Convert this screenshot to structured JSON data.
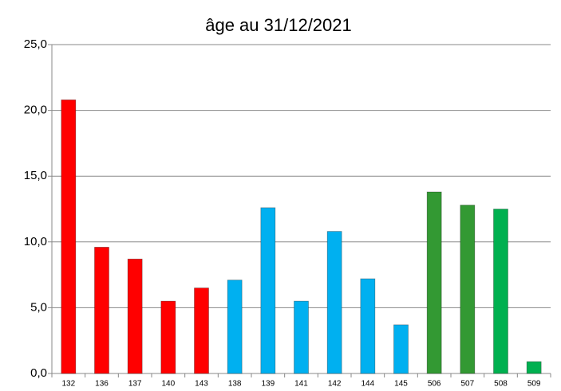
{
  "chart_data": {
    "type": "bar",
    "title": "âge au 31/12/2021",
    "categories": [
      "132",
      "136",
      "137",
      "140",
      "143",
      "138",
      "139",
      "141",
      "142",
      "144",
      "145",
      "506",
      "507",
      "508",
      "509"
    ],
    "values": [
      20.8,
      9.6,
      8.7,
      5.5,
      6.5,
      7.1,
      12.6,
      5.5,
      10.8,
      7.2,
      3.7,
      13.8,
      12.8,
      12.5,
      0.9
    ],
    "colors": [
      "#ff0000",
      "#ff0000",
      "#ff0000",
      "#ff0000",
      "#ff0000",
      "#00b0f0",
      "#00b0f0",
      "#00b0f0",
      "#00b0f0",
      "#00b0f0",
      "#00b0f0",
      "#339933",
      "#339933",
      "#00b050",
      "#00b050"
    ],
    "ylim": [
      0,
      25
    ],
    "yticks": [
      {
        "value": 0,
        "label": "0,0"
      },
      {
        "value": 5,
        "label": "5,0"
      },
      {
        "value": 10,
        "label": "10,0"
      },
      {
        "value": 15,
        "label": "15,0"
      },
      {
        "value": 20,
        "label": "20,0"
      },
      {
        "value": 25,
        "label": "25,0"
      }
    ],
    "grid": true
  }
}
